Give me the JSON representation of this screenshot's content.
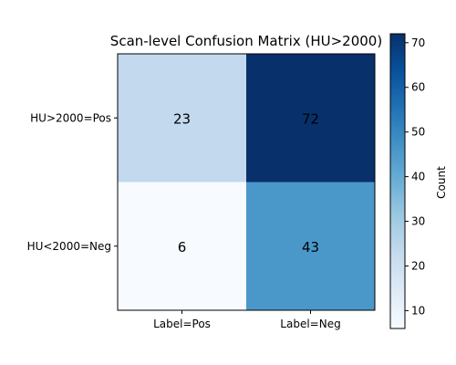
{
  "chart_data": {
    "type": "heatmap",
    "title": "Scan-level Confusion Matrix (HU>2000)",
    "row_labels": [
      "HU>2000=Pos",
      "HU<2000=Neg"
    ],
    "col_labels": [
      "Label=Pos",
      "Label=Neg"
    ],
    "values": [
      [
        23,
        72
      ],
      [
        6,
        43
      ]
    ],
    "colormap": "Blues",
    "colorbar": {
      "label": "Count",
      "range": [
        6,
        72
      ],
      "ticks": [
        10,
        20,
        30,
        40,
        50,
        60,
        70
      ]
    },
    "colors": {
      "23": "#c3d9ee",
      "72": "#08306b",
      "6": "#f7fbff",
      "43": "#4a98c9"
    }
  }
}
